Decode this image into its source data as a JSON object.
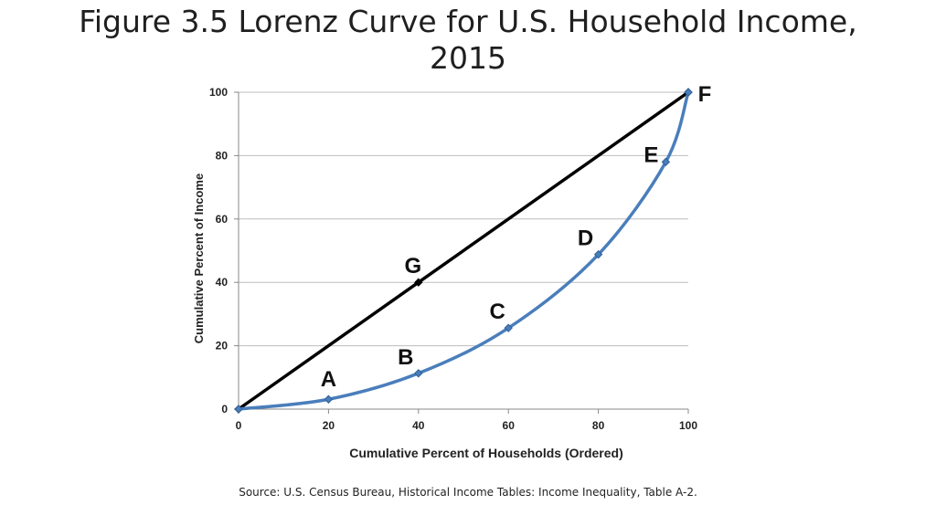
{
  "slide": {
    "title_line1": "Figure 3.5 Lorenz Curve for U.S. Household Income,",
    "title_line2": "2015",
    "source": "Source: U.S. Census Bureau, Historical Income Tables: Income Inequality, Table A-2."
  },
  "chart_data": {
    "type": "line",
    "xlabel": "Cumulative Percent of Households (Ordered)",
    "ylabel": "Cumulative Percent of Income",
    "xlim": [
      0,
      100
    ],
    "ylim": [
      0,
      100
    ],
    "x_ticks": [
      "0",
      "20",
      "40",
      "60",
      "80",
      "100"
    ],
    "y_ticks": [
      "0",
      "20",
      "40",
      "60",
      "80",
      "100"
    ],
    "grid": "horizontal",
    "legend": "none",
    "series": [
      {
        "color": "#000000",
        "points": [
          {
            "x": 0,
            "y": 0,
            "label": ""
          },
          {
            "x": 40,
            "y": 40,
            "label": "G"
          },
          {
            "x": 100,
            "y": 100,
            "label": "F"
          }
        ]
      },
      {
        "color": "#4a7ebb",
        "points": [
          {
            "x": 0,
            "y": 0,
            "label": ""
          },
          {
            "x": 20,
            "y": 3.1,
            "label": "A"
          },
          {
            "x": 40,
            "y": 11.3,
            "label": "B"
          },
          {
            "x": 60,
            "y": 25.6,
            "label": "C"
          },
          {
            "x": 80,
            "y": 48.8,
            "label": "D"
          },
          {
            "x": 95,
            "y": 78,
            "label": "E"
          },
          {
            "x": 100,
            "y": 100,
            "label": ""
          }
        ]
      }
    ]
  }
}
